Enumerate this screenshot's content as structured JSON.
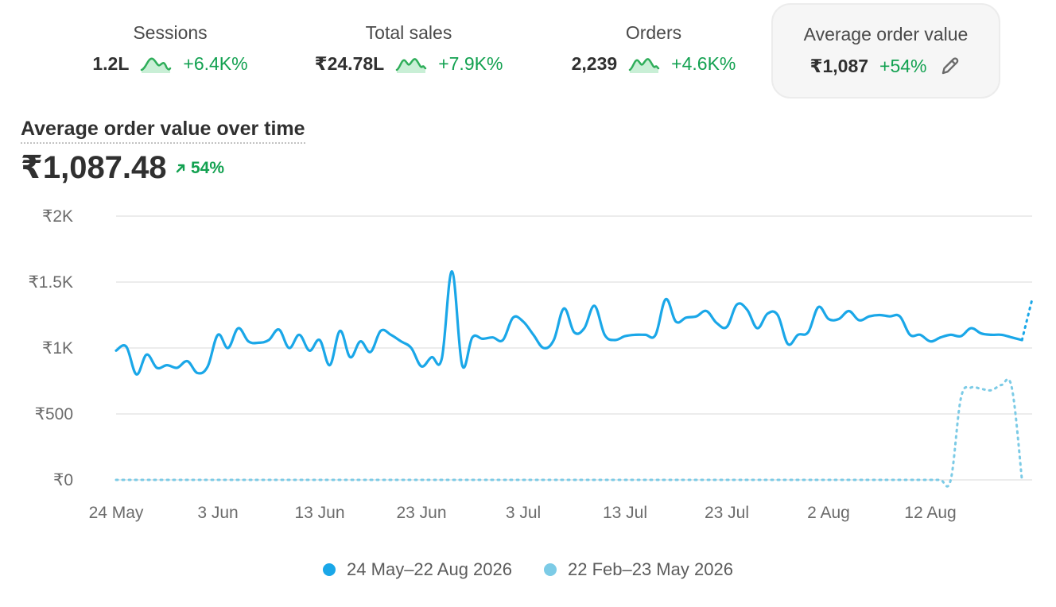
{
  "metrics": [
    {
      "label": "Sessions",
      "value": "1.2L",
      "change": "+6.4K%"
    },
    {
      "label": "Total sales",
      "value": "₹24.78L",
      "change": "+7.9K%"
    },
    {
      "label": "Orders",
      "value": "2,239",
      "change": "+4.6K%"
    },
    {
      "label": "Average order value",
      "value": "₹1,087",
      "change": "+54%"
    }
  ],
  "chart_header": {
    "title": "Average order value over time",
    "value": "₹1,087.48",
    "change": "54%"
  },
  "colors": {
    "current": "#1aa7e8",
    "previous": "#7ccbe6",
    "positive": "#12a150",
    "grid": "#e6e6e6"
  },
  "icons": {
    "edit": "pencil-icon",
    "trend": "arrow-up-right-icon",
    "sparkline": "sparkline-icon"
  },
  "chart_data": {
    "type": "line",
    "title": "Average order value over time",
    "y_ticks": [
      "₹0",
      "₹500",
      "₹1K",
      "₹1.5K",
      "₹2K"
    ],
    "ylim": [
      0,
      2000
    ],
    "x_ticks": [
      {
        "day": 0,
        "label": "24 May"
      },
      {
        "day": 10,
        "label": "3 Jun"
      },
      {
        "day": 20,
        "label": "13 Jun"
      },
      {
        "day": 30,
        "label": "23 Jun"
      },
      {
        "day": 40,
        "label": "3 Jul"
      },
      {
        "day": 50,
        "label": "13 Jul"
      },
      {
        "day": 60,
        "label": "23 Jul"
      },
      {
        "day": 70,
        "label": "2 Aug"
      },
      {
        "day": 80,
        "label": "12 Aug"
      }
    ],
    "xlim": [
      0,
      90
    ],
    "grid": true,
    "legend": "bottom",
    "series": [
      {
        "name": "24 May–22 Aug 2026",
        "style": "solid",
        "values": [
          980,
          1010,
          800,
          950,
          850,
          870,
          850,
          900,
          810,
          860,
          1100,
          1000,
          1150,
          1050,
          1040,
          1060,
          1140,
          1000,
          1100,
          980,
          1060,
          870,
          1130,
          930,
          1050,
          970,
          1130,
          1100,
          1050,
          1000,
          860,
          930,
          920,
          1580,
          870,
          1080,
          1070,
          1080,
          1060,
          1230,
          1200,
          1100,
          1000,
          1060,
          1300,
          1120,
          1150,
          1320,
          1100,
          1060,
          1090,
          1100,
          1100,
          1100,
          1370,
          1200,
          1230,
          1240,
          1280,
          1190,
          1160,
          1330,
          1290,
          1150,
          1260,
          1250,
          1030,
          1100,
          1120,
          1310,
          1220,
          1220,
          1280,
          1210,
          1240,
          1250,
          1240,
          1240,
          1100,
          1100,
          1050,
          1080,
          1100,
          1090,
          1150,
          1110,
          1100,
          1100,
          1080,
          1060,
          1370
        ]
      },
      {
        "name": "22 Feb–23 May 2026",
        "style": "dotted",
        "values": [
          0,
          0,
          0,
          0,
          0,
          0,
          0,
          0,
          0,
          0,
          0,
          0,
          0,
          0,
          0,
          0,
          0,
          0,
          0,
          0,
          0,
          0,
          0,
          0,
          0,
          0,
          0,
          0,
          0,
          0,
          0,
          0,
          0,
          0,
          0,
          0,
          0,
          0,
          0,
          0,
          0,
          0,
          0,
          0,
          0,
          0,
          0,
          0,
          0,
          0,
          0,
          0,
          0,
          0,
          0,
          0,
          0,
          0,
          0,
          0,
          0,
          0,
          0,
          0,
          0,
          0,
          0,
          0,
          0,
          0,
          0,
          0,
          0,
          0,
          0,
          0,
          0,
          0,
          0,
          0,
          0,
          0,
          0,
          620,
          700,
          690,
          680,
          720,
          700,
          0
        ]
      }
    ]
  }
}
